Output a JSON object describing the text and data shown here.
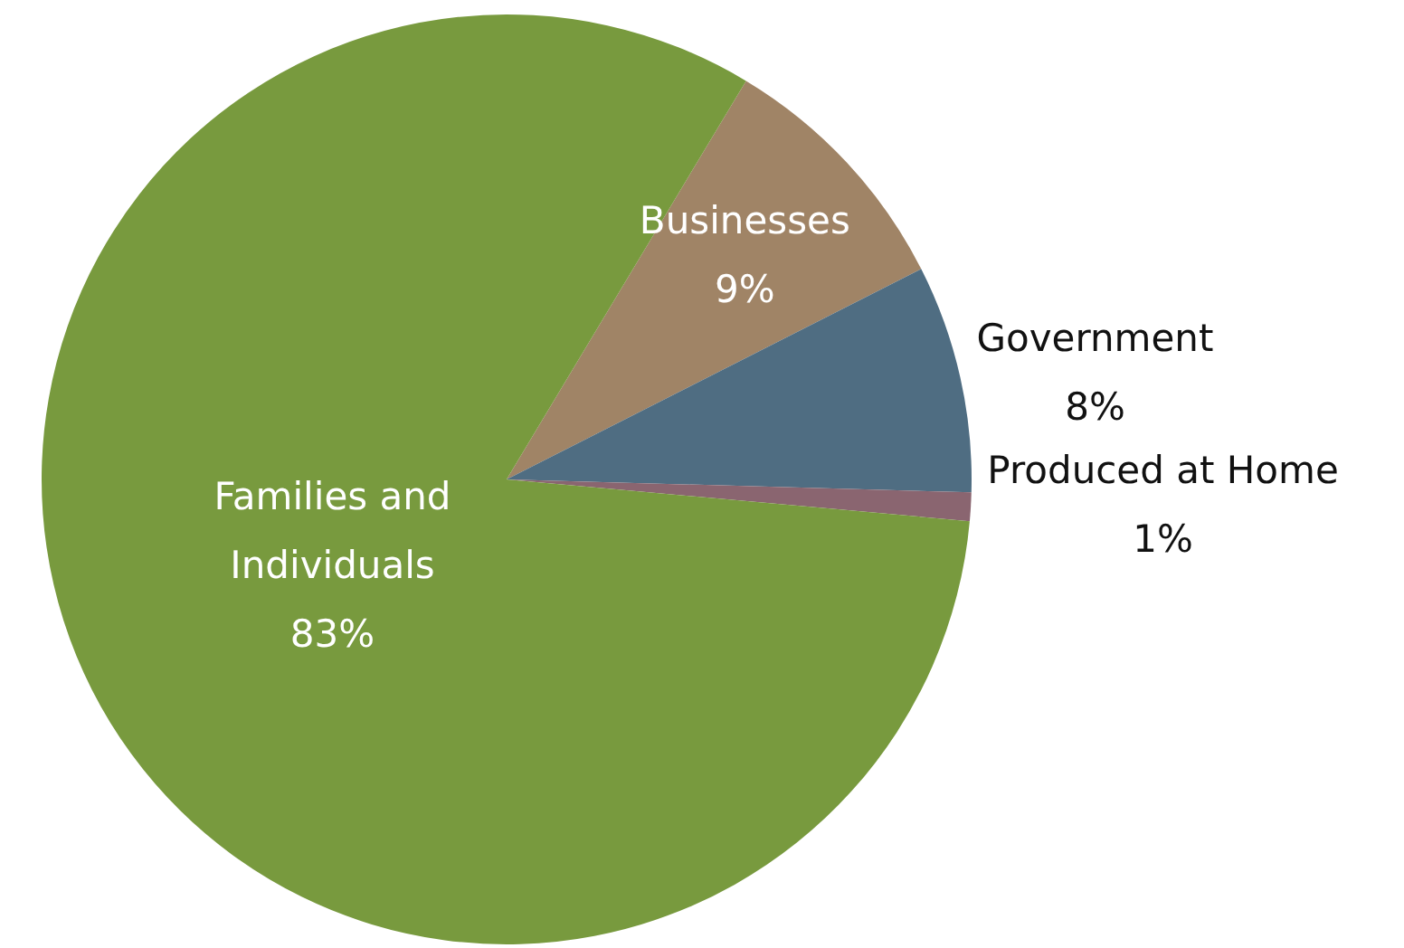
{
  "chart_data": {
    "type": "pie",
    "categories": [
      "Businesses",
      "Government",
      "Produced at Home",
      "Families and Individuals"
    ],
    "values": [
      9,
      8,
      1,
      83
    ],
    "colors": [
      "#a08466",
      "#4f6d82",
      "#8a6570",
      "#789a3e"
    ],
    "value_labels": [
      "9%",
      "8%",
      "1%",
      "83%"
    ]
  }
}
